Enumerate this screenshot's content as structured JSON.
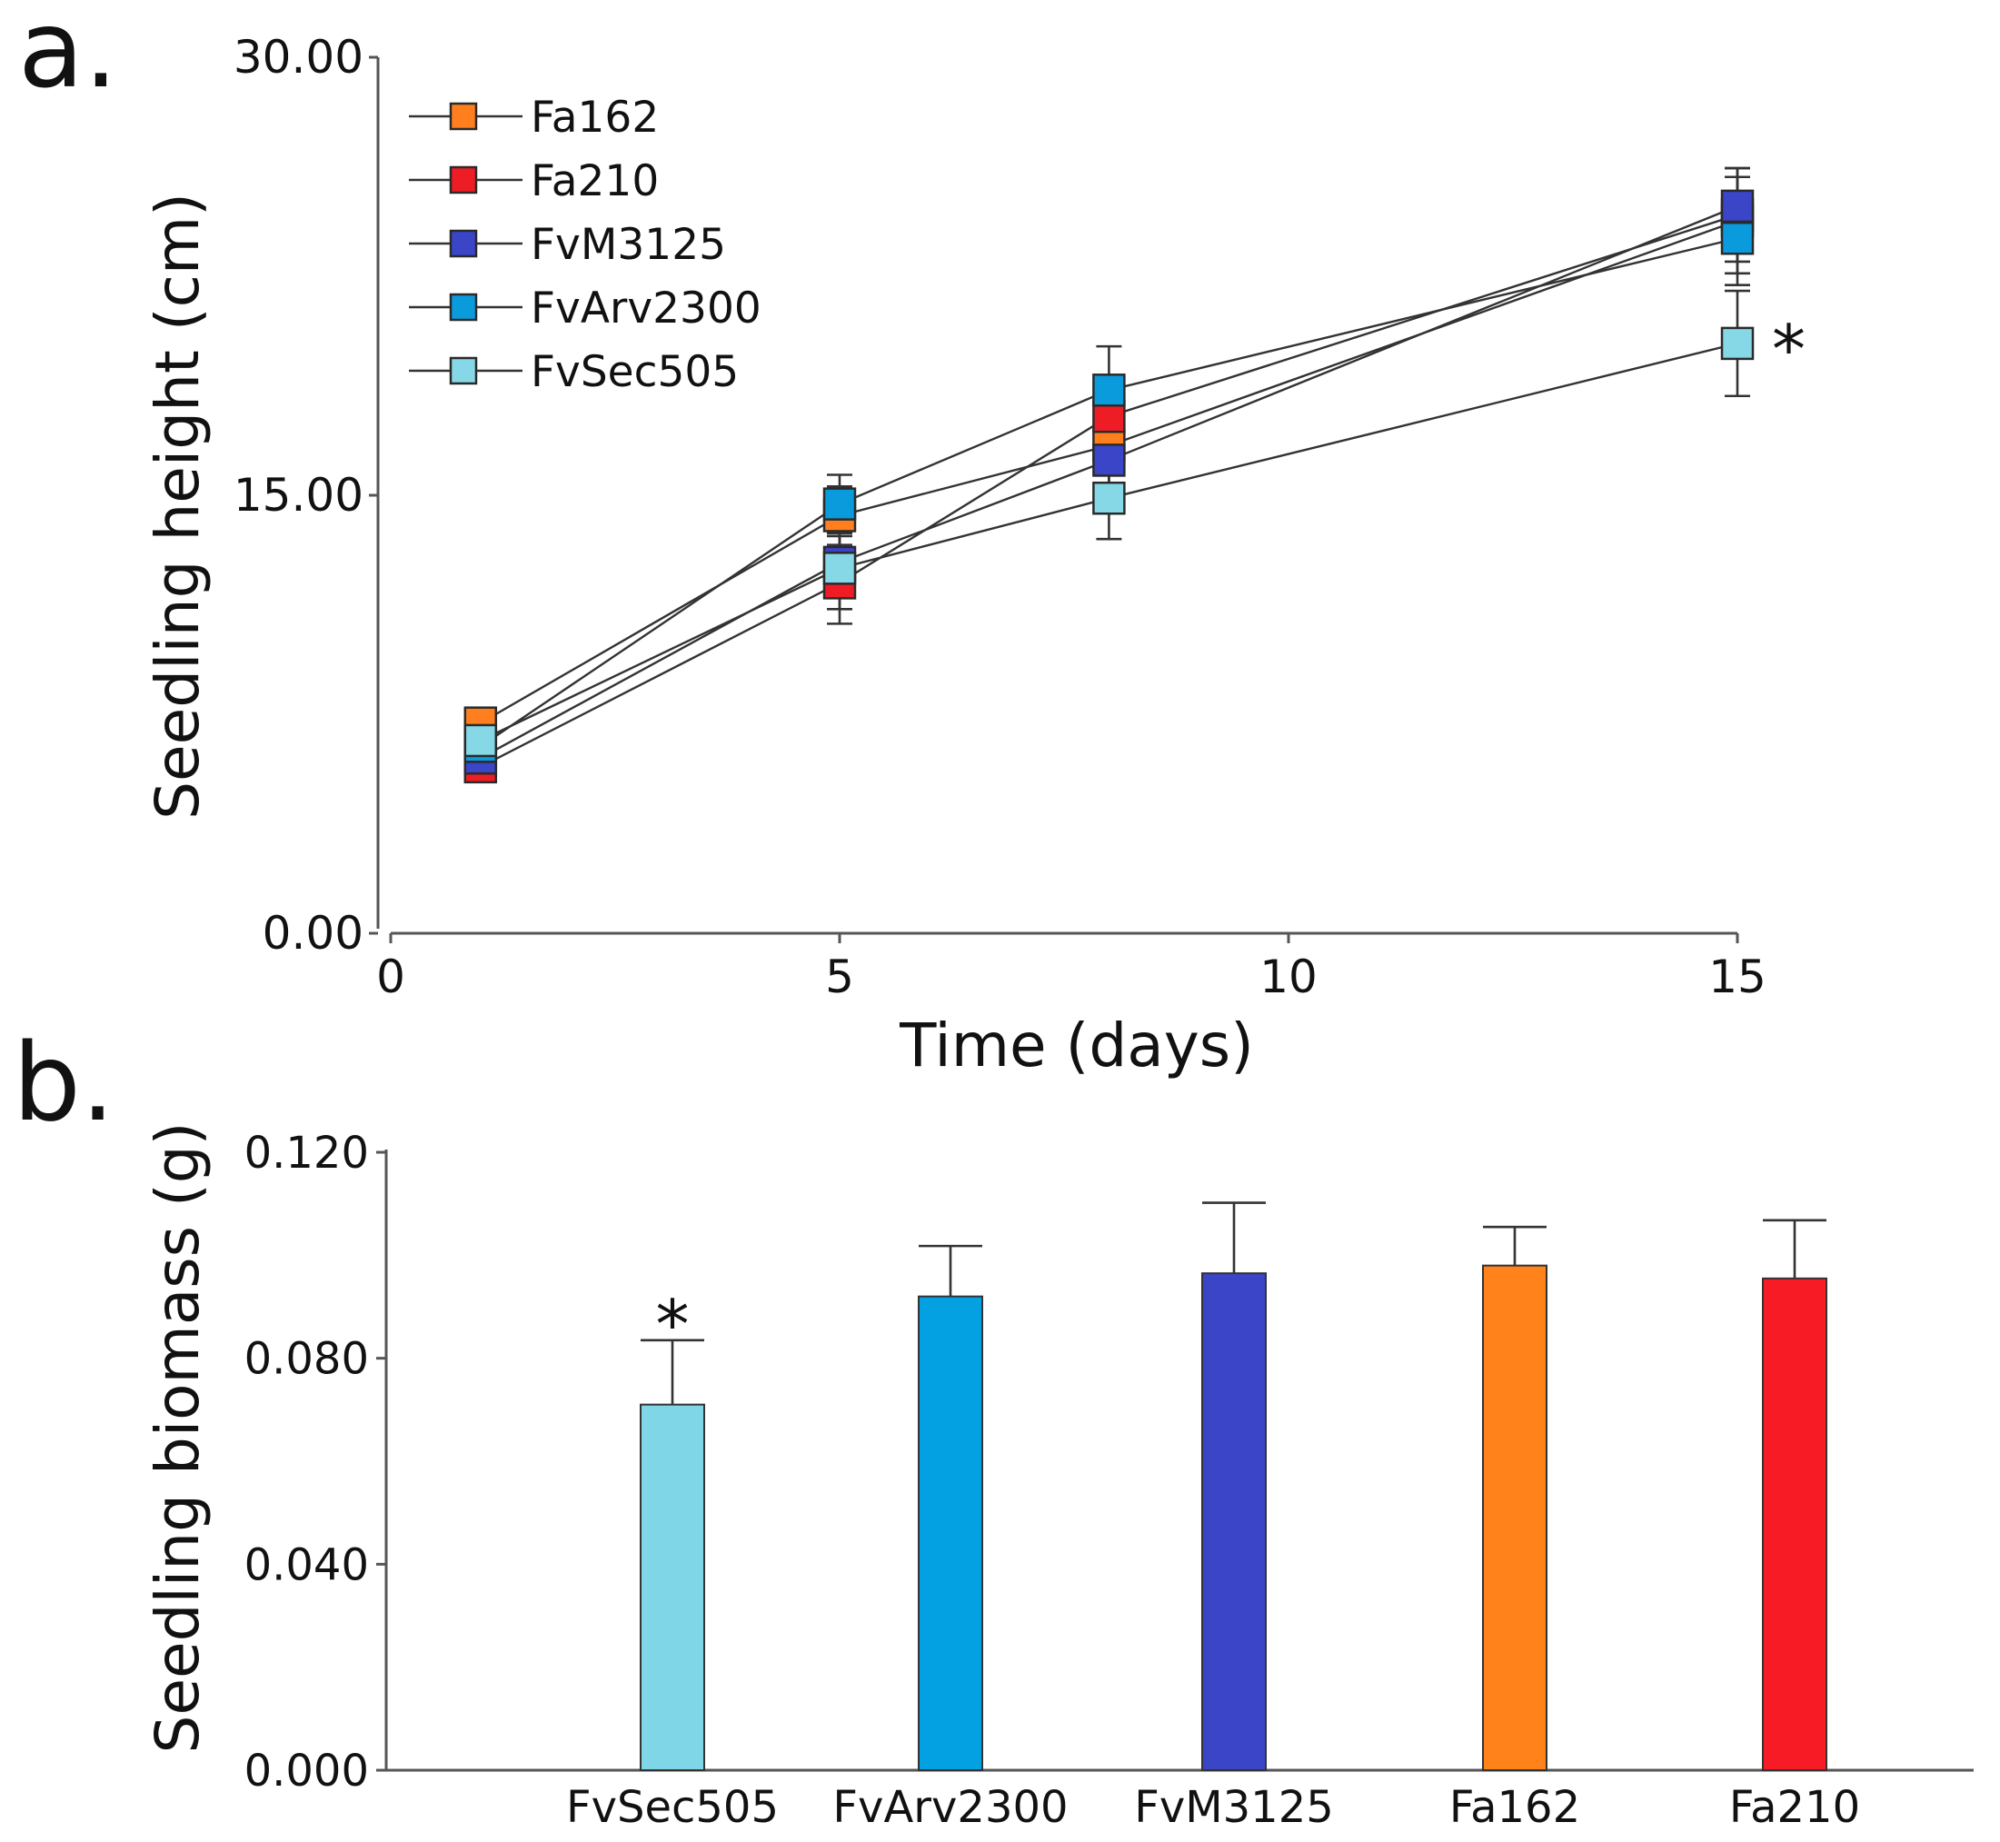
{
  "chart_data": [
    {
      "panel_label": "a.",
      "type": "line",
      "xlabel": "Time (days)",
      "ylabel": "Seedling height (cm)",
      "xlim": [
        0,
        15
      ],
      "ylim": [
        0,
        30
      ],
      "xticks": [
        "0",
        "5",
        "10",
        "15"
      ],
      "yticks": [
        "0.00",
        "15.00",
        "30.00"
      ],
      "x": [
        1,
        5,
        8,
        15
      ],
      "series": [
        {
          "name": "Fa162",
          "color": "#ff7f1e",
          "values": [
            7.2,
            14.3,
            16.7,
            24.4
          ],
          "errors": [
            0.5,
            1.0,
            0.8,
            1.8
          ]
        },
        {
          "name": "Fa210",
          "color": "#ee1c25",
          "values": [
            5.7,
            12.0,
            17.7,
            24.6
          ],
          "errors": [
            0.5,
            0.9,
            0.9,
            1.6
          ]
        },
        {
          "name": "FvM3125",
          "color": "#3a45c8",
          "values": [
            6.0,
            12.7,
            16.2,
            24.9
          ],
          "errors": [
            0.5,
            0.9,
            1.0,
            1.0
          ]
        },
        {
          "name": "FvArv2300",
          "color": "#0a9bdc",
          "values": [
            6.4,
            14.7,
            18.6,
            23.8
          ],
          "errors": [
            0.5,
            1.0,
            1.5,
            1.6
          ]
        },
        {
          "name": "FvSec505",
          "color": "#86d8e6",
          "values": [
            6.6,
            12.5,
            14.9,
            20.2
          ],
          "errors": [
            0.5,
            1.9,
            1.4,
            1.8
          ]
        }
      ],
      "legend": "top-left",
      "annotations": [
        {
          "text": "*",
          "series": "FvSec505",
          "x": 15
        }
      ]
    },
    {
      "panel_label": "b.",
      "type": "bar",
      "xlabel": "",
      "ylabel": "Seedling biomass (g)",
      "ylim": [
        0,
        0.12
      ],
      "yticks": [
        "0.000",
        "0.040",
        "0.080",
        "0.120"
      ],
      "categories": [
        "FvSec505",
        "FvArv2300",
        "FvM3125",
        "Fa162",
        "Fa210"
      ],
      "values": [
        0.071,
        0.092,
        0.0965,
        0.098,
        0.0955
      ],
      "errors": [
        0.0125,
        0.0098,
        0.0137,
        0.0075,
        0.0113
      ],
      "colors": [
        "#7fd6e6",
        "#03a0e2",
        "#3a45c8",
        "#ff821a",
        "#f71b25"
      ],
      "annotations": [
        {
          "text": "*",
          "category": "FvSec505"
        }
      ]
    }
  ]
}
